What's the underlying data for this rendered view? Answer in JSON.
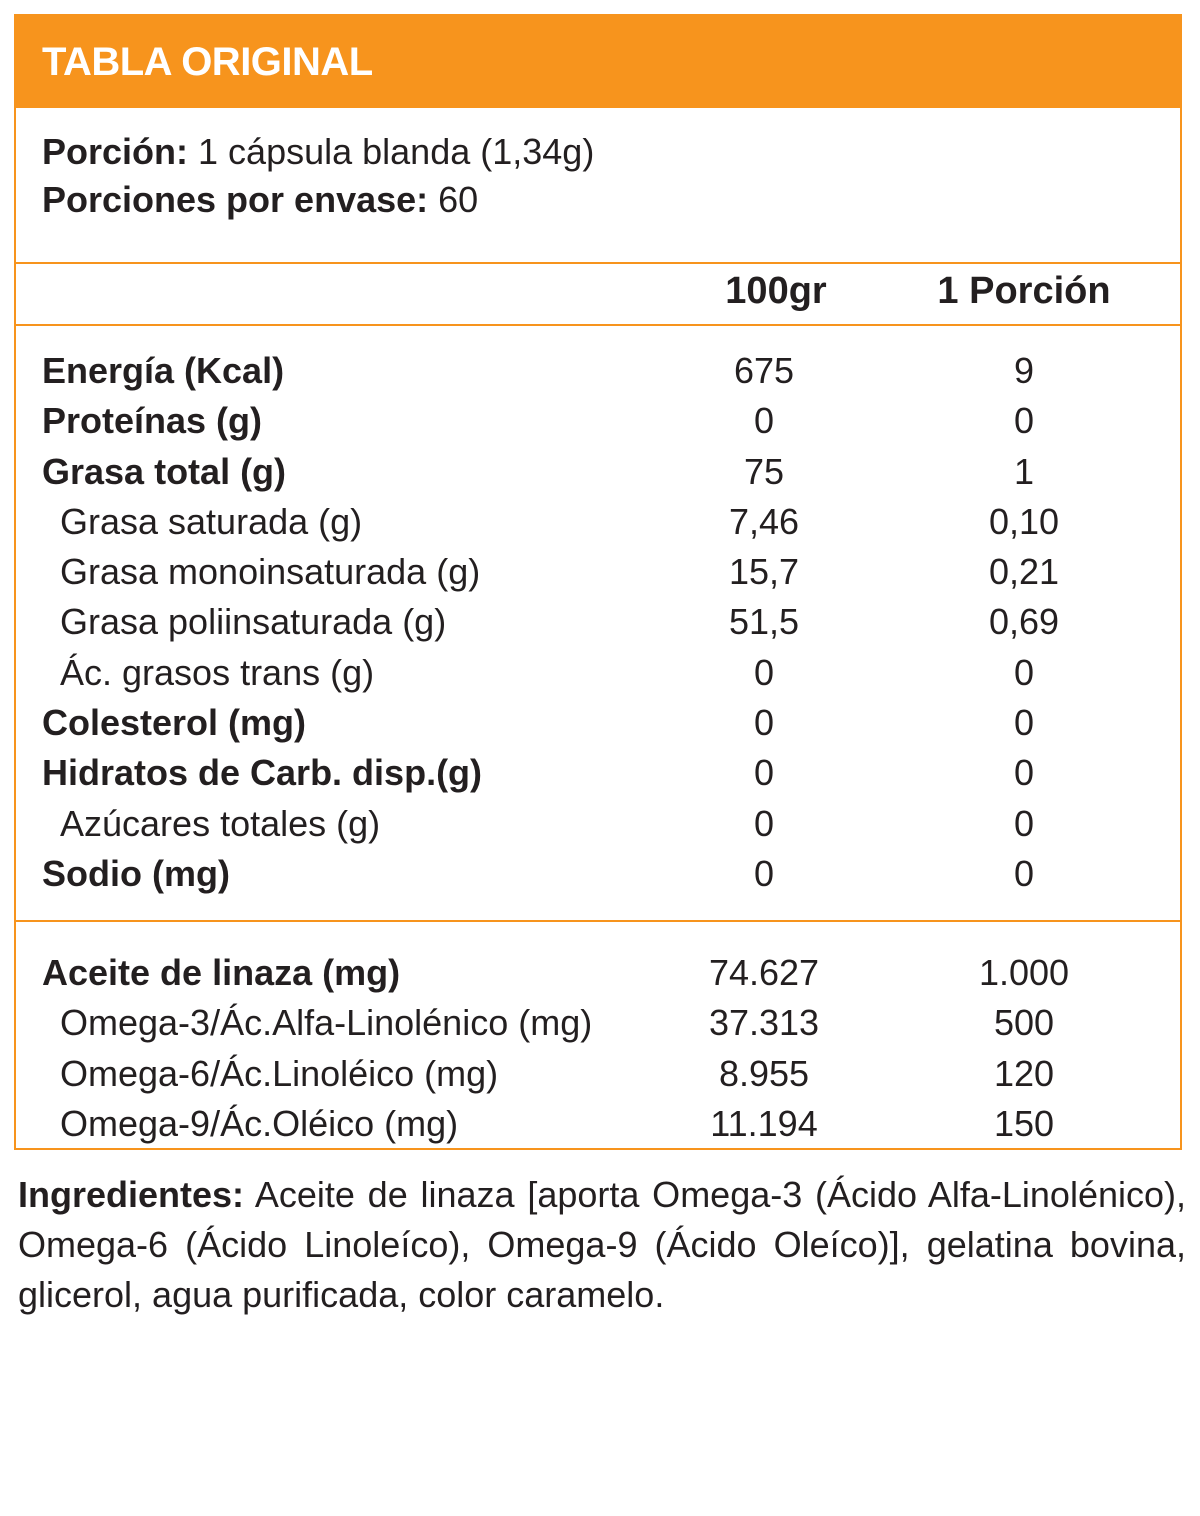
{
  "header": {
    "title": "TABLA ORIGINAL"
  },
  "portion": {
    "serving_label": "Porción:",
    "serving_value": "1 cápsula blanda (1,34g)",
    "servings_label": "Porciones por envase:",
    "servings_value": "60"
  },
  "columns": {
    "col1": "100gr",
    "col2": "1 Porción"
  },
  "nutrients": [
    {
      "label": "Energía (Kcal)",
      "v100": "675",
      "vportion": "9",
      "bold": true
    },
    {
      "label": "Proteínas (g)",
      "v100": "0",
      "vportion": "0",
      "bold": true
    },
    {
      "label": "Grasa total (g)",
      "v100": "75",
      "vportion": "1",
      "bold": true
    },
    {
      "label": "Grasa saturada (g)",
      "v100": "7,46",
      "vportion": "0,10",
      "bold": false
    },
    {
      "label": "Grasa monoinsaturada (g)",
      "v100": "15,7",
      "vportion": "0,21",
      "bold": false
    },
    {
      "label": "Grasa poliinsaturada (g)",
      "v100": "51,5",
      "vportion": "0,69",
      "bold": false
    },
    {
      "label": "Ác. grasos trans (g)",
      "v100": "0",
      "vportion": "0",
      "bold": false
    },
    {
      "label": "Colesterol (mg)",
      "v100": "0",
      "vportion": "0",
      "bold": true
    },
    {
      "label": "Hidratos de Carb. disp.(g)",
      "v100": "0",
      "vportion": "0",
      "bold": true
    },
    {
      "label": "Azúcares totales (g)",
      "v100": "0",
      "vportion": "0",
      "bold": false
    },
    {
      "label": "Sodio (mg)",
      "v100": "0",
      "vportion": "0",
      "bold": true
    }
  ],
  "oils": [
    {
      "label": "Aceite de linaza (mg)",
      "v100": "74.627",
      "vportion": "1.000",
      "bold": true
    },
    {
      "label": "Omega-3/Ác.Alfa-Linolénico (mg)",
      "v100": "37.313",
      "vportion": "500",
      "bold": false
    },
    {
      "label": "Omega-6/Ác.Linoléico (mg)",
      "v100": "8.955",
      "vportion": "120",
      "bold": false
    },
    {
      "label": "Omega-9/Ác.Oléico (mg)",
      "v100": "11.194",
      "vportion": "150",
      "bold": false
    }
  ],
  "ingredients": {
    "label": "Ingredientes:",
    "text": "Aceite de linaza [aporta Omega-3 (Ácido Alfa-Linolénico), Omega-6 (Ácido Linoleíco), Omega-9 (Ácido Oleíco)], gelatina bovina, glicerol, agua purificada, color caramelo."
  }
}
